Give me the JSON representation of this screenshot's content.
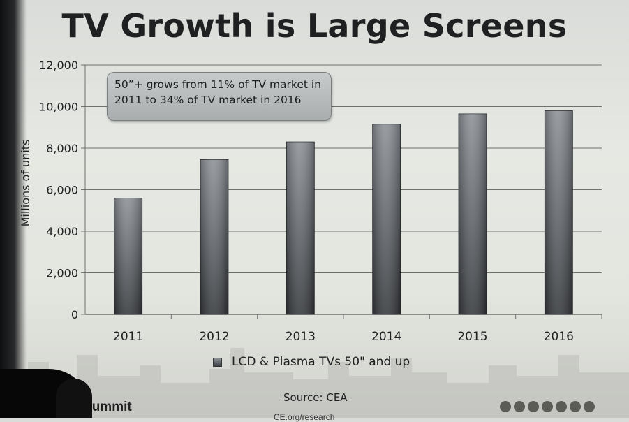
{
  "slide": {
    "title": "TV Growth is Large Screens",
    "annotation": "50”+ grows from 11% of TV market in 2011 to 34% of TV market in 2016",
    "source": "Source: CEA",
    "footer_left": "Re     ch Summit",
    "footer_under": "CE.org/research"
  },
  "chart_data": {
    "type": "bar",
    "categories": [
      "2011",
      "2012",
      "2013",
      "2014",
      "2015",
      "2016"
    ],
    "series": [
      {
        "name": "LCD & Plasma TVs 50\" and up",
        "values": [
          5600,
          7450,
          8300,
          9150,
          9650,
          9800
        ]
      }
    ],
    "title": "TV Growth is Large Screens",
    "xlabel": "",
    "ylabel": "Millions of units",
    "ylim": [
      0,
      12000
    ],
    "yticks": [
      0,
      2000,
      4000,
      6000,
      8000,
      10000,
      12000
    ],
    "ytick_labels": [
      "0",
      "2,000",
      "4,000",
      "6,000",
      "8,000",
      "10,000",
      "12,000"
    ],
    "grid": true,
    "legend": "bottom",
    "colors": {
      "bar_top": "#8c9197",
      "bar_bottom": "#34373b",
      "grid": "#6f716d",
      "text": "#1f2021"
    }
  }
}
